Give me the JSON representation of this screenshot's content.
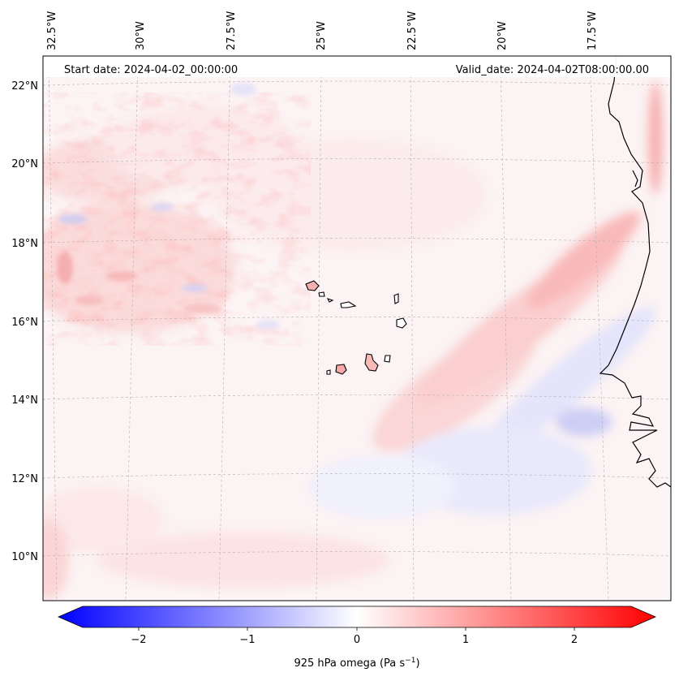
{
  "header": {
    "start_date": "Start date: 2024-04-02_00:00:00",
    "valid_date": "Valid_date: 2024-04-02T08:00:00.00"
  },
  "lon_labels": [
    "32.5°W",
    "30°W",
    "27.5°W",
    "25°W",
    "22.5°W",
    "20°W",
    "17.5°W"
  ],
  "lat_labels": [
    "22°N",
    "20°N",
    "18°N",
    "16°N",
    "14°N",
    "12°N",
    "10°N"
  ],
  "colorbar": {
    "ticks": [
      "−2",
      "−1",
      "0",
      "1",
      "2"
    ],
    "label": "925 hPa omega (Pa s",
    "label_sup": "−1",
    "label_end": ")",
    "min": -2.6,
    "max": 2.6,
    "colors": {
      "negative": "#0000ff",
      "zero": "#ffffff",
      "positive": "#ff0000"
    }
  },
  "chart_data": {
    "type": "heatmap",
    "variable": "925 hPa omega (Pa s−1)",
    "lon_range": [
      "32.5°W",
      "16°W"
    ],
    "lat_range": [
      "9°N",
      "22.7°N"
    ],
    "grid": true
  }
}
